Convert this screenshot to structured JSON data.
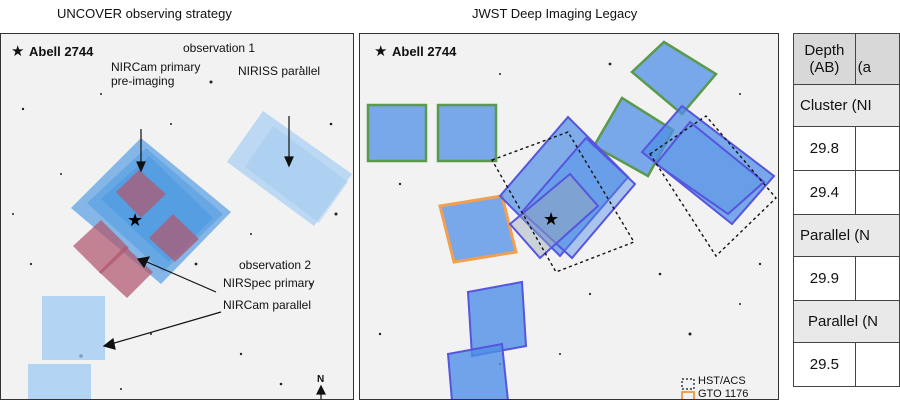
{
  "left_panel": {
    "title": "UNCOVER observing strategy",
    "target_label": "Abell 2744",
    "labels": {
      "obs1": "observation 1",
      "nircam_primary_1": "NIRCam primary",
      "nircam_primary_2": "pre-imaging",
      "niriss_parallel": "NIRISS parallel",
      "obs2": "observation 2",
      "nirspec_primary": "NIRSpec primary",
      "nircam_parallel": "NIRCam parallel",
      "north": "N"
    },
    "colors": {
      "nircam": "#3a8fe0",
      "niriss": "#9ec9f2",
      "nirspec": "#b0566e"
    }
  },
  "right_panel": {
    "title": "JWST Deep Imaging Legacy",
    "target_label": "Abell 2744",
    "legend": [
      {
        "label": "HST/ACS",
        "style": "dashed",
        "color": "#111111"
      },
      {
        "label": "GTO 1176",
        "style": "solid",
        "color": "#f0a050"
      }
    ],
    "colors": {
      "blue": "#4f8fe6",
      "uncover_edge": "#5555dd",
      "gto_edge": "#5a9a4a",
      "gto1176_edge": "#f0a050"
    }
  },
  "table": {
    "header": [
      "Depth",
      "(AB)",
      "(a"
    ],
    "rows": [
      {
        "section": "Cluster (NI"
      },
      {
        "value": "29.8"
      },
      {
        "value": "29.4"
      },
      {
        "section": "Parallel (N"
      },
      {
        "value": "29.9"
      },
      {
        "section": "Parallel (N"
      },
      {
        "value": "29.5"
      }
    ]
  }
}
